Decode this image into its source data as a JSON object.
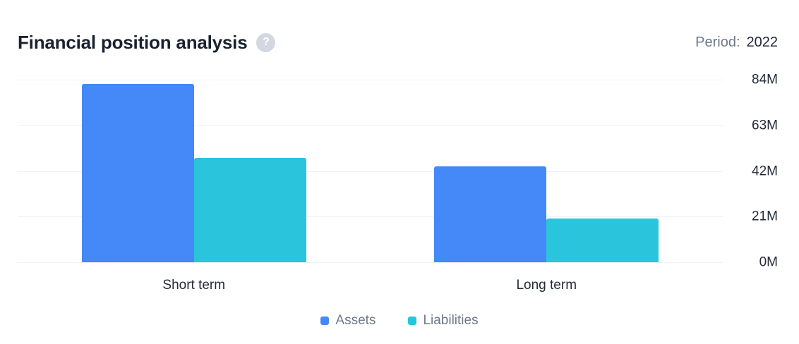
{
  "header": {
    "title": "Financial position analysis",
    "help_icon": "?",
    "period_label": "Period:",
    "period_value": "2022"
  },
  "chart_data": {
    "type": "bar",
    "title": "Financial position analysis",
    "categories": [
      "Short term",
      "Long term"
    ],
    "series": [
      {
        "name": "Assets",
        "color": "#4489F7",
        "values": [
          82,
          44
        ]
      },
      {
        "name": "Liabilities",
        "color": "#2AC4DC",
        "values": [
          48,
          20
        ]
      }
    ],
    "unit": "M",
    "ylim": [
      0,
      84
    ],
    "yticks": [
      84,
      63,
      42,
      21,
      0
    ],
    "ytick_labels": [
      "84M",
      "63M",
      "42M",
      "21M",
      "0M"
    ],
    "grid": true,
    "legend_position": "bottom",
    "y_axis_side": "right",
    "colors": {
      "gridline": "#edf1f6",
      "axis_text": "#242b3a",
      "legend_text": "#6f7888"
    }
  }
}
